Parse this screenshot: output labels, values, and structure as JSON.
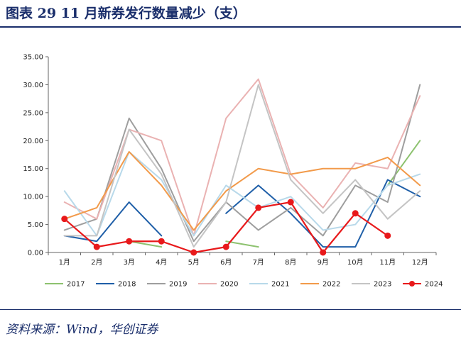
{
  "header": {
    "title": "图表 29   11 月新券发行数量减少（支）"
  },
  "footer": {
    "source": "资料来源：Wind，华创证券"
  },
  "chart_data": {
    "type": "line",
    "title": "11 月新券发行数量减少（支）",
    "categories": [
      "1月",
      "2月",
      "3月",
      "4月",
      "5月",
      "6月",
      "7月",
      "8月",
      "9月",
      "10月",
      "11月",
      "12月"
    ],
    "ylim": [
      0,
      35
    ],
    "yticks": [
      "0.00",
      "5.00",
      "10.00",
      "15.00",
      "20.00",
      "25.00",
      "30.00",
      "35.00"
    ],
    "legend_position": "bottom",
    "series": [
      {
        "name": "2017",
        "color": "#8dc26f",
        "values": [
          null,
          null,
          2,
          1,
          null,
          2,
          1,
          null,
          null,
          null,
          12,
          20
        ]
      },
      {
        "name": "2018",
        "color": "#1f5fa8",
        "values": [
          3,
          2,
          9,
          3,
          null,
          7,
          12,
          7,
          1,
          1,
          13,
          10
        ]
      },
      {
        "name": "2019",
        "color": "#9e9e9e",
        "values": [
          4,
          6,
          24,
          15,
          2,
          9,
          4,
          8,
          3,
          12,
          9,
          30
        ]
      },
      {
        "name": "2020",
        "color": "#eab2b2",
        "values": [
          9,
          6,
          22,
          20,
          3,
          24,
          31,
          14,
          8,
          16,
          15,
          28
        ]
      },
      {
        "name": "2021",
        "color": "#b8d9ea",
        "values": [
          11,
          3,
          18,
          13,
          3,
          12,
          8,
          10,
          4,
          5,
          12,
          14
        ]
      },
      {
        "name": "2022",
        "color": "#f29a4a",
        "values": [
          6,
          8,
          18,
          12,
          4,
          11,
          15,
          14,
          15,
          15,
          17,
          12
        ]
      },
      {
        "name": "2023",
        "color": "#c4c4c4",
        "values": [
          3,
          3,
          22,
          14,
          1,
          9,
          30,
          13,
          7,
          13,
          6,
          11
        ]
      },
      {
        "name": "2024",
        "color": "#e8191b",
        "marker": "circle",
        "values": [
          6,
          1,
          2,
          2,
          0,
          1,
          8,
          9,
          0,
          7,
          3,
          null
        ]
      }
    ]
  }
}
